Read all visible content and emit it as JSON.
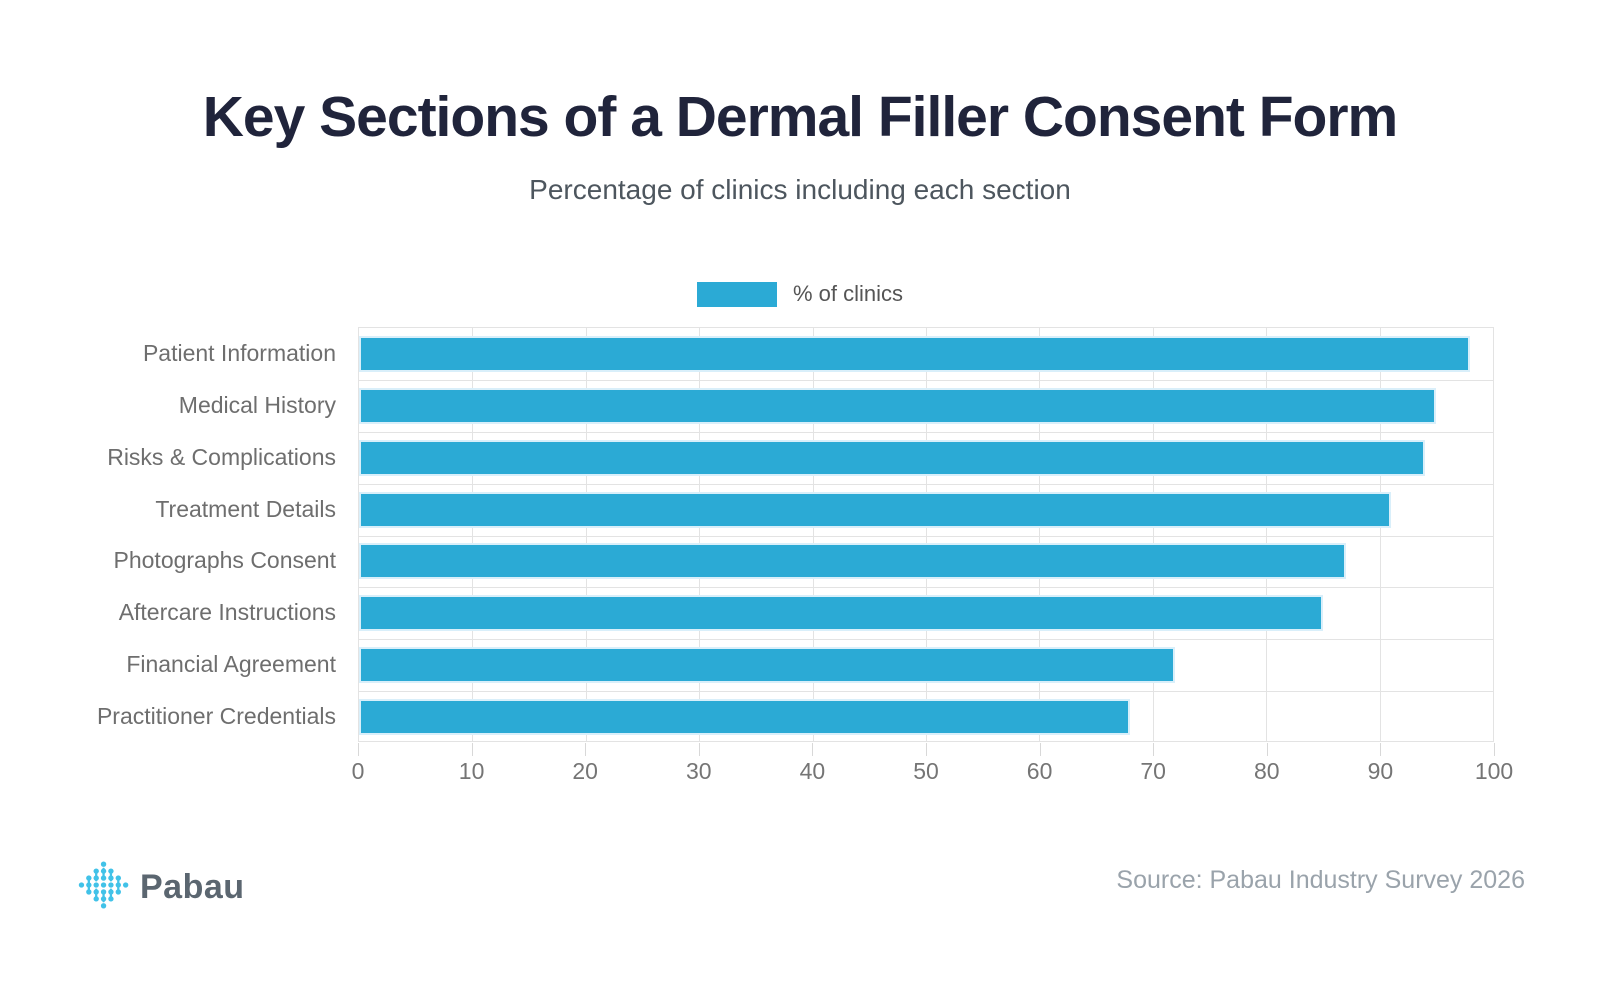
{
  "header": {
    "title": "Key Sections of a Dermal Filler Consent Form",
    "subtitle": "Percentage of clinics including each section"
  },
  "legend": {
    "label": "% of clinics",
    "swatch_color": "#2BAAD5"
  },
  "chart_data": {
    "type": "bar",
    "orientation": "horizontal",
    "title": "Key Sections of a Dermal Filler Consent Form",
    "subtitle": "Percentage of clinics including each section",
    "legend_entries": [
      "% of clinics"
    ],
    "legend_position": "top-center",
    "categories": [
      "Patient Information",
      "Medical History",
      "Risks & Complications",
      "Treatment Details",
      "Photographs Consent",
      "Aftercare Instructions",
      "Financial Agreement",
      "Practitioner Credentials"
    ],
    "values": [
      98,
      95,
      94,
      91,
      87,
      85,
      72,
      68
    ],
    "xlabel": "",
    "ylabel": "",
    "xlim": [
      0,
      100
    ],
    "xticks": [
      0,
      10,
      20,
      30,
      40,
      50,
      60,
      70,
      80,
      90,
      100
    ],
    "grid": true,
    "bar_color": "#2BAAD5"
  },
  "footer": {
    "brand": "Pabau",
    "source": "Source: Pabau Industry Survey 2026"
  },
  "colors": {
    "title": "#20243B",
    "subtitle": "#4D565E",
    "category_label": "#6E6E6E",
    "tick_label": "#757575",
    "gridline": "#E3E3E3",
    "bar": "#2BAAD5",
    "bar_edge": "#D9EFFA",
    "logo": "#41C2E8",
    "brand_text": "#5B6670",
    "source_text": "#9AA3AB"
  }
}
